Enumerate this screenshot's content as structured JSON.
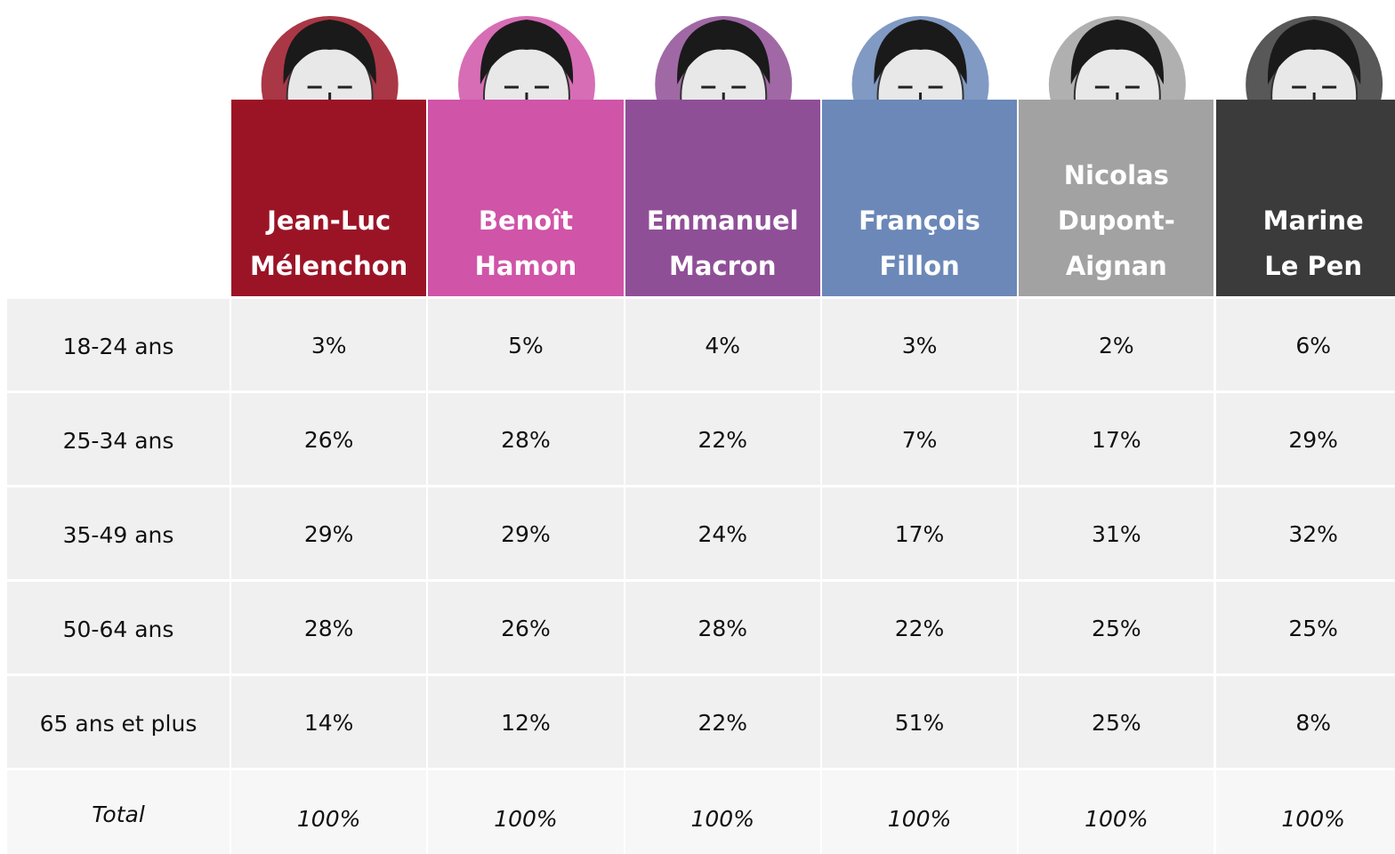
{
  "header": {
    "columns": [
      {
        "lines": [
          "Jean-Luc",
          "Mélenchon"
        ],
        "color": "#9b1426"
      },
      {
        "lines": [
          "Benoît",
          "Hamon"
        ],
        "color": "#d054a8"
      },
      {
        "lines": [
          "Emmanuel",
          "Macron"
        ],
        "color": "#8f4f97"
      },
      {
        "lines": [
          "François",
          "Fillon"
        ],
        "color": "#6b88b8"
      },
      {
        "lines": [
          "Nicolas",
          "Dupont-",
          "Aignan"
        ],
        "color": "#a2a2a2"
      },
      {
        "lines": [
          "Marine",
          "Le Pen"
        ],
        "color": "#3b3b3b"
      }
    ]
  },
  "table": {
    "rows": [
      {
        "label": "18-24 ans",
        "cells": [
          "3%",
          "5%",
          "4%",
          "3%",
          "2%",
          "6%"
        ]
      },
      {
        "label": "25-34 ans",
        "cells": [
          "26%",
          "28%",
          "22%",
          "7%",
          "17%",
          "29%"
        ]
      },
      {
        "label": "35-49 ans",
        "cells": [
          "29%",
          "29%",
          "24%",
          "17%",
          "31%",
          "32%"
        ]
      },
      {
        "label": "50-64 ans",
        "cells": [
          "28%",
          "26%",
          "28%",
          "22%",
          "25%",
          "25%"
        ]
      },
      {
        "label": "65 ans et plus",
        "cells": [
          "14%",
          "12%",
          "22%",
          "51%",
          "25%",
          "8%"
        ]
      },
      {
        "label": "Total",
        "cells": [
          "100%",
          "100%",
          "100%",
          "100%",
          "100%",
          "100%"
        ],
        "italic": true
      }
    ]
  }
}
